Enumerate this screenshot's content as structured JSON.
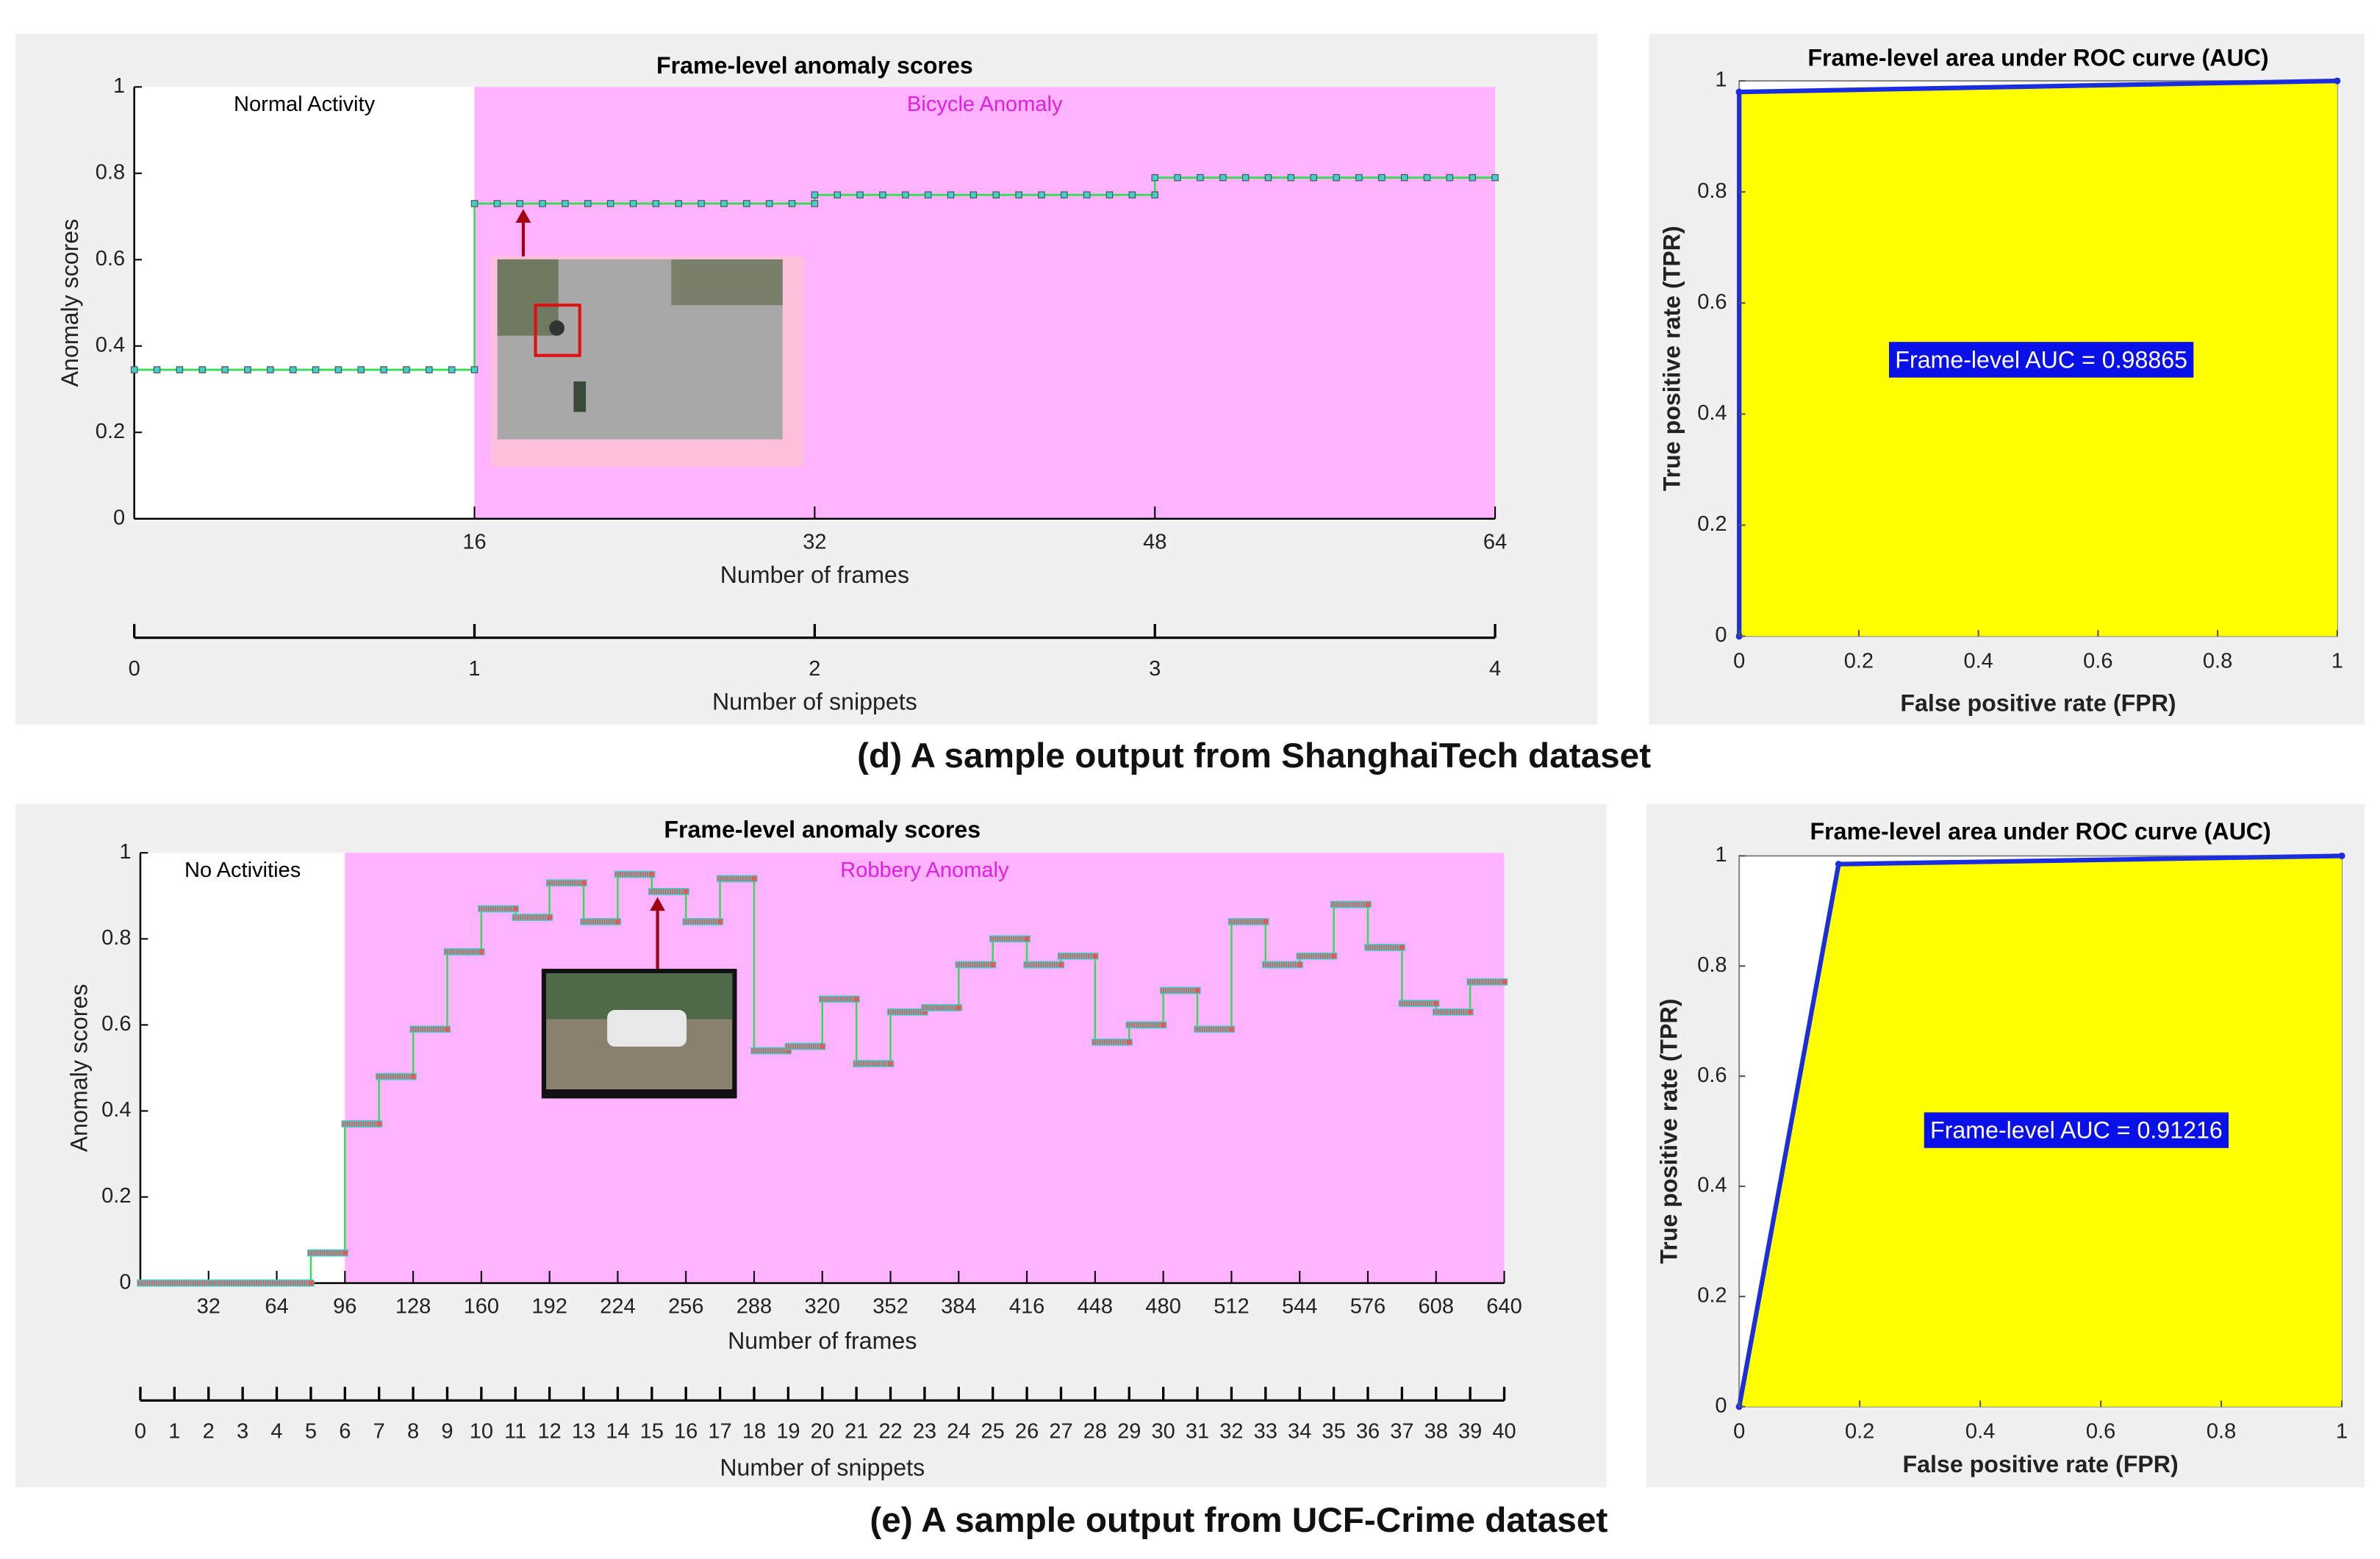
{
  "captions": [
    "(d) A sample output from ShanghaiTech dataset",
    "(e) A sample output from UCF-Crime dataset"
  ],
  "chart_data": [
    {
      "type": "line",
      "title": "Frame-level anomaly scores",
      "xlabel": "Number of frames",
      "ylabel": "Anomaly scores",
      "x2label": "Number of snippets",
      "xlim": [
        0,
        64
      ],
      "xticks": [
        16,
        32,
        48,
        64
      ],
      "ylim": [
        0,
        1
      ],
      "yticks": [
        0,
        0.2,
        0.4,
        0.6,
        0.8,
        1
      ],
      "x2lim": [
        0,
        4
      ],
      "x2ticks": [
        0,
        1,
        2,
        3,
        4
      ],
      "regions": [
        {
          "label": "Normal Activity",
          "x": [
            0,
            16
          ],
          "color": "#ffffff",
          "text_color": "#000000"
        },
        {
          "label": "Bicycle Anomaly",
          "x": [
            16,
            64
          ],
          "color": "#ffb3ff",
          "text_color": "#e020e0"
        }
      ],
      "series": [
        {
          "color": "#33dd55",
          "marker_color": "#40d0d0",
          "marker_edge": "#555555",
          "x2": [
            0,
            1,
            2,
            3
          ],
          "values": [
            0.345,
            0.73,
            0.75,
            0.79
          ]
        }
      ]
    },
    {
      "type": "roc",
      "title": "Frame-level area under ROC curve (AUC)",
      "xlabel": "False positive rate (FPR)",
      "ylabel": "True positive rate (TPR)",
      "annotation": "Frame-level AUC = 0.98865",
      "xlim": [
        0,
        1
      ],
      "xticks": [
        0,
        0.2,
        0.4,
        0.6,
        0.8,
        1
      ],
      "ylim": [
        0,
        1
      ],
      "yticks": [
        0,
        0.2,
        0.4,
        0.6,
        0.8,
        1
      ],
      "series": [
        {
          "color": "#1a2ee0",
          "fill": "#ffff00",
          "x": [
            0,
            0,
            1
          ],
          "values": [
            0,
            0.98,
            1
          ]
        }
      ]
    },
    {
      "type": "line",
      "title": "Frame-level anomaly scores",
      "xlabel": "Number of frames",
      "ylabel": "Anomaly scores",
      "x2label": "Number of snippets",
      "xlim": [
        0,
        640
      ],
      "xticks": [
        32,
        64,
        96,
        128,
        160,
        192,
        224,
        256,
        288,
        320,
        352,
        384,
        416,
        448,
        480,
        512,
        544,
        576,
        608,
        640
      ],
      "ylim": [
        0,
        1
      ],
      "yticks": [
        0,
        0.2,
        0.4,
        0.6,
        0.8,
        1
      ],
      "x2lim": [
        0,
        40
      ],
      "x2ticks": [
        0,
        1,
        2,
        3,
        4,
        5,
        6,
        7,
        8,
        9,
        10,
        11,
        12,
        13,
        14,
        15,
        16,
        17,
        18,
        19,
        20,
        21,
        22,
        23,
        24,
        25,
        26,
        27,
        28,
        29,
        30,
        31,
        32,
        33,
        34,
        35,
        36,
        37,
        38,
        39,
        40
      ],
      "regions": [
        {
          "label": "No Activities",
          "x": [
            0,
            96
          ],
          "color": "#ffffff",
          "text_color": "#000000"
        },
        {
          "label": "Robbery Anomaly",
          "x": [
            96,
            640
          ],
          "color": "#ffb3ff",
          "text_color": "#e020e0"
        }
      ],
      "series": [
        {
          "color": "#33dd55",
          "marker_color": "#e05a5a",
          "marker_edge": "#40d0d0",
          "x2": [
            0,
            1,
            2,
            3,
            4,
            5,
            6,
            7,
            8,
            9,
            10,
            11,
            12,
            13,
            14,
            15,
            16,
            17,
            18,
            19,
            20,
            21,
            22,
            23,
            24,
            25,
            26,
            27,
            28,
            29,
            30,
            31,
            32,
            33,
            34,
            35,
            36,
            37,
            38,
            39
          ],
          "values": [
            0,
            0,
            0,
            0,
            0,
            0.07,
            0.37,
            0.48,
            0.59,
            0.77,
            0.87,
            0.85,
            0.93,
            0.84,
            0.95,
            0.91,
            0.84,
            0.94,
            0.54,
            0.55,
            0.66,
            0.51,
            0.63,
            0.64,
            0.74,
            0.8,
            0.74,
            0.76,
            0.56,
            0.6,
            0.68,
            0.59,
            0.84,
            0.74,
            0.76,
            0.88,
            0.78,
            0.65,
            0.63,
            0.7
          ]
        }
      ]
    },
    {
      "type": "roc",
      "title": "Frame-level area under ROC curve (AUC)",
      "xlabel": "False positive rate (FPR)",
      "ylabel": "True positive rate (TPR)",
      "annotation": "Frame-level AUC = 0.91216",
      "xlim": [
        0,
        1
      ],
      "xticks": [
        0,
        0.2,
        0.4,
        0.6,
        0.8,
        1
      ],
      "ylim": [
        0,
        1
      ],
      "yticks": [
        0,
        0.2,
        0.4,
        0.6,
        0.8,
        1
      ],
      "series": [
        {
          "color": "#1a2ee0",
          "fill": "#ffff00",
          "x": [
            0,
            0.165,
            1
          ],
          "values": [
            0,
            0.985,
            1
          ]
        }
      ]
    }
  ]
}
